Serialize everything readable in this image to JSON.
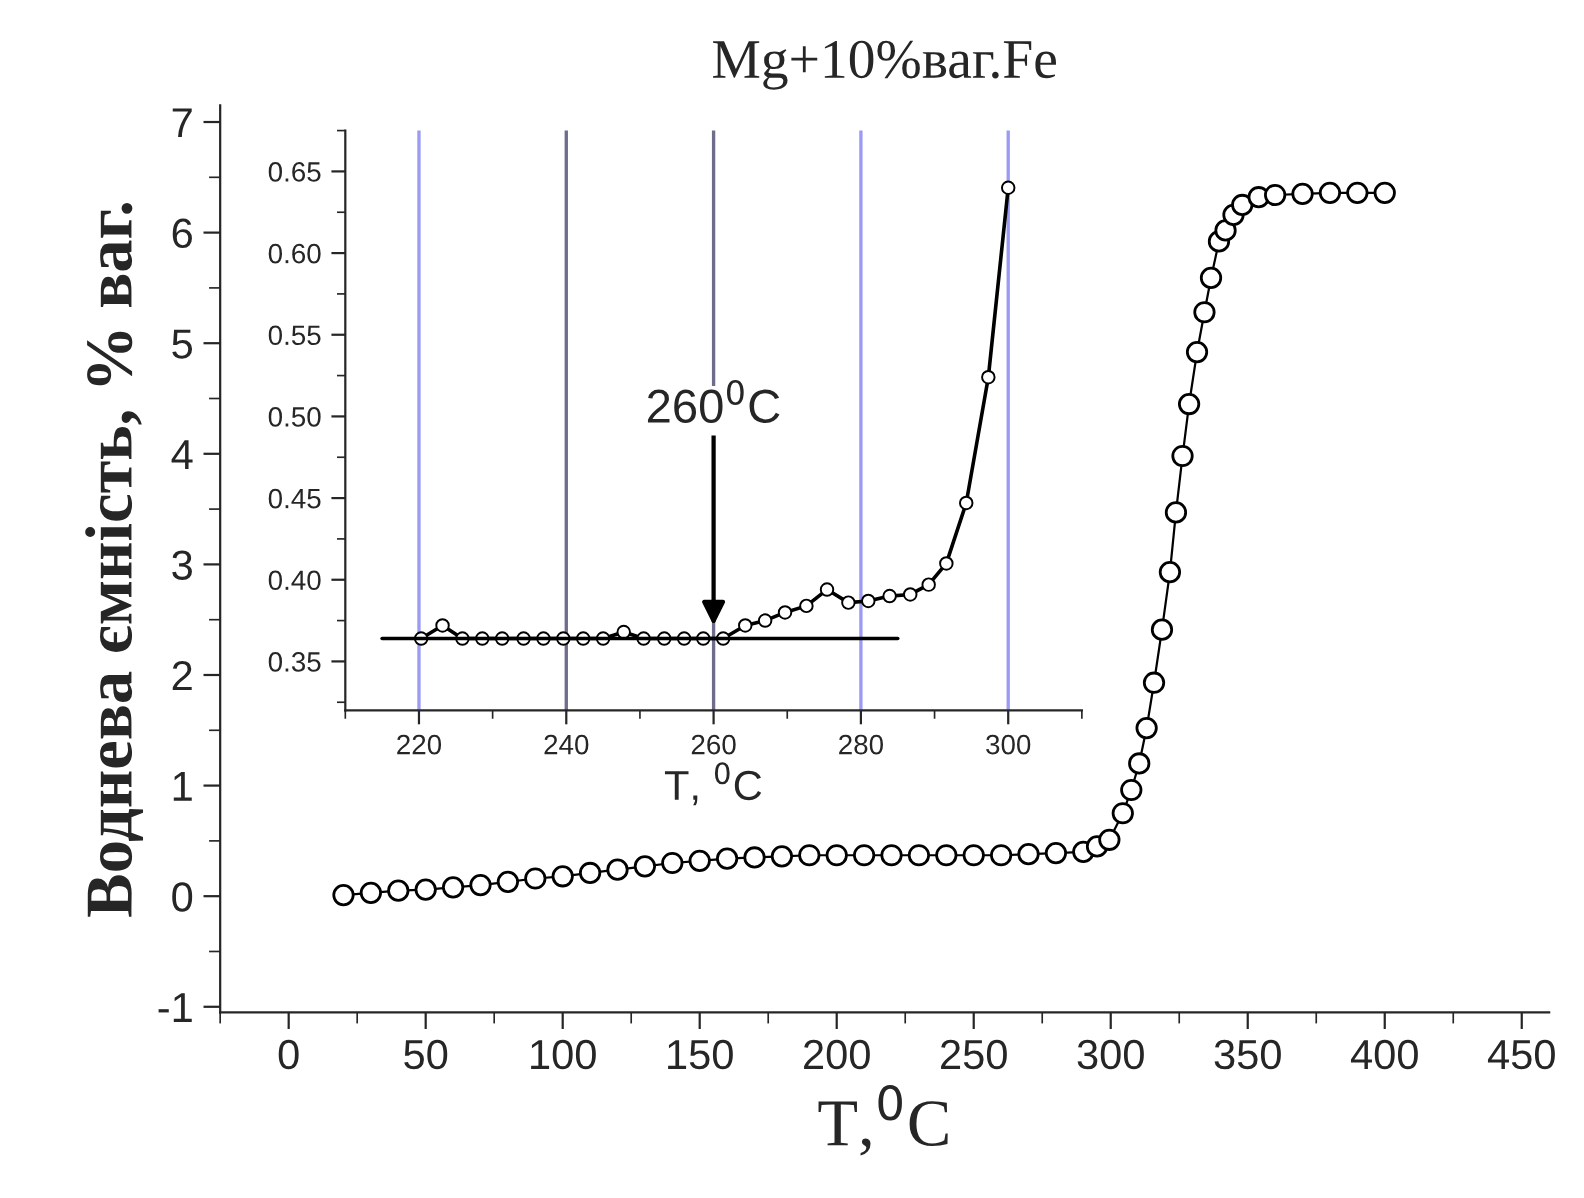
{
  "chart_data": [
    {
      "type": "line",
      "title": "Mg+10%ваг.Fe",
      "xlabel": "T,$^{0}$C",
      "ylabel": "Воднева ємність, % ваг.",
      "marker": "circle",
      "line_style": "solid",
      "xlim": [
        -25,
        460
      ],
      "ylim": [
        -1.05,
        7.15
      ],
      "xticks": [
        0,
        50,
        100,
        150,
        200,
        250,
        300,
        350,
        400,
        450
      ],
      "yticks": [
        {
          "value": -1,
          "label": "-1"
        },
        0,
        1,
        2,
        3,
        4,
        5,
        6,
        7
      ],
      "series": [
        {
          "color": "#000000",
          "x": [
            20,
            30,
            40,
            50,
            60,
            70,
            80,
            90,
            100,
            110,
            120,
            130,
            140,
            150,
            160,
            170,
            180,
            190,
            200,
            210,
            220,
            230,
            240,
            250,
            260,
            270,
            280,
            290,
            295,
            299.5,
            304.4,
            307.5,
            310.4,
            313.1,
            315.8,
            318.7,
            321.6,
            323.8,
            326.2,
            328.6,
            331.5,
            334.2,
            336.6,
            339.5,
            341.9,
            344.8,
            348,
            354,
            360,
            370,
            380,
            390,
            400
          ],
          "values": [
            0.01,
            0.03,
            0.05,
            0.06,
            0.08,
            0.1,
            0.13,
            0.16,
            0.18,
            0.21,
            0.24,
            0.27,
            0.3,
            0.32,
            0.34,
            0.35,
            0.36,
            0.37,
            0.37,
            0.37,
            0.37,
            0.37,
            0.37,
            0.37,
            0.37,
            0.38,
            0.39,
            0.4,
            0.45,
            0.51,
            0.75,
            0.96,
            1.2,
            1.52,
            1.93,
            2.41,
            2.93,
            3.47,
            3.98,
            4.45,
            4.92,
            5.28,
            5.59,
            5.92,
            6.02,
            6.16,
            6.25,
            6.32,
            6.34,
            6.35,
            6.36,
            6.36,
            6.36
          ]
        }
      ]
    },
    {
      "type": "line",
      "xlabel": "T, $^{0}$C",
      "marker": "circle",
      "line_style": "solid",
      "xlim": [
        210,
        310
      ],
      "ylim": [
        0.32,
        0.675
      ],
      "xticks": [
        220,
        240,
        260,
        280,
        300
      ],
      "yticks": [
        {
          "value": 0.35,
          "label": "0.35"
        },
        {
          "value": 0.4,
          "label": "0.40"
        },
        {
          "value": 0.45,
          "label": "0.45"
        },
        {
          "value": 0.5,
          "label": "0.50"
        },
        {
          "value": 0.55,
          "label": "0.55"
        },
        {
          "value": 0.6,
          "label": "0.60"
        },
        {
          "value": 0.65,
          "label": "0.65"
        }
      ],
      "ref_lines": [
        {
          "axis": "x",
          "value": 220,
          "color": "#9b9bf5"
        },
        {
          "axis": "x",
          "value": 240,
          "color": "#6e6e8c"
        },
        {
          "axis": "x",
          "value": 260,
          "color": "#6e6e8c"
        },
        {
          "axis": "x",
          "value": 280,
          "color": "#9b9bf5"
        },
        {
          "axis": "x",
          "value": 300,
          "color": "#9b9bf5"
        }
      ],
      "annotations": [
        {
          "text": "260$^{0}$C",
          "x": 260,
          "y": 0.372
        }
      ],
      "series": [
        {
          "color": "#000000",
          "x": [
            220.3,
            223.2,
            225.9,
            228.6,
            231.3,
            234.2,
            236.9,
            239.6,
            242.3,
            245.0,
            247.8,
            250.5,
            253.3,
            256.0,
            258.6,
            261.3,
            264.3,
            267.0,
            269.7,
            272.6,
            275.4,
            278.3,
            281.0,
            283.9,
            286.7,
            289.2,
            291.6,
            294.3,
            297.3,
            300.0
          ],
          "values": [
            0.364,
            0.372,
            0.364,
            0.364,
            0.364,
            0.364,
            0.364,
            0.364,
            0.364,
            0.364,
            0.368,
            0.364,
            0.364,
            0.364,
            0.364,
            0.364,
            0.372,
            0.375,
            0.38,
            0.384,
            0.394,
            0.386,
            0.387,
            0.39,
            0.391,
            0.397,
            0.41,
            0.447,
            0.524,
            0.64
          ]
        },
        {
          "type": "line",
          "marker": "none",
          "color": "#000000",
          "x": [
            215,
            285
          ],
          "values": [
            0.364,
            0.364
          ]
        }
      ]
    }
  ]
}
